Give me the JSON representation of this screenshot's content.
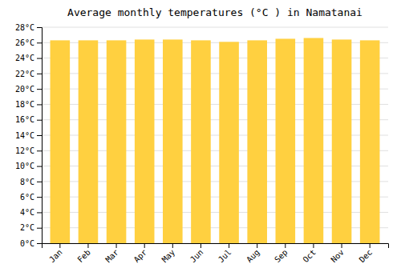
{
  "chart_data": {
    "type": "bar",
    "title": "Average monthly temperatures (°C ) in Namatanai",
    "categories": [
      "Jan",
      "Feb",
      "Mar",
      "Apr",
      "May",
      "Jun",
      "Jul",
      "Aug",
      "Sep",
      "Oct",
      "Nov",
      "Dec"
    ],
    "values": [
      26.3,
      26.3,
      26.3,
      26.4,
      26.4,
      26.3,
      26.1,
      26.3,
      26.5,
      26.6,
      26.4,
      26.3
    ],
    "color": "#FFD040",
    "ylim": [
      0,
      28
    ],
    "yticks": [
      {
        "value": 0,
        "label": "0°C"
      },
      {
        "value": 2,
        "label": "2°C"
      },
      {
        "value": 4,
        "label": "4°C"
      },
      {
        "value": 6,
        "label": "6°C"
      },
      {
        "value": 8,
        "label": "8°C"
      },
      {
        "value": 10,
        "label": "10°C"
      },
      {
        "value": 12,
        "label": "12°C"
      },
      {
        "value": 14,
        "label": "14°C"
      },
      {
        "value": 16,
        "label": "16°C"
      },
      {
        "value": 18,
        "label": "18°C"
      },
      {
        "value": 20,
        "label": "20°C"
      },
      {
        "value": 22,
        "label": "22°C"
      },
      {
        "value": 24,
        "label": "24°C"
      },
      {
        "value": 26,
        "label": "26°C"
      },
      {
        "value": 28,
        "label": "28°C"
      }
    ],
    "grid": true
  }
}
